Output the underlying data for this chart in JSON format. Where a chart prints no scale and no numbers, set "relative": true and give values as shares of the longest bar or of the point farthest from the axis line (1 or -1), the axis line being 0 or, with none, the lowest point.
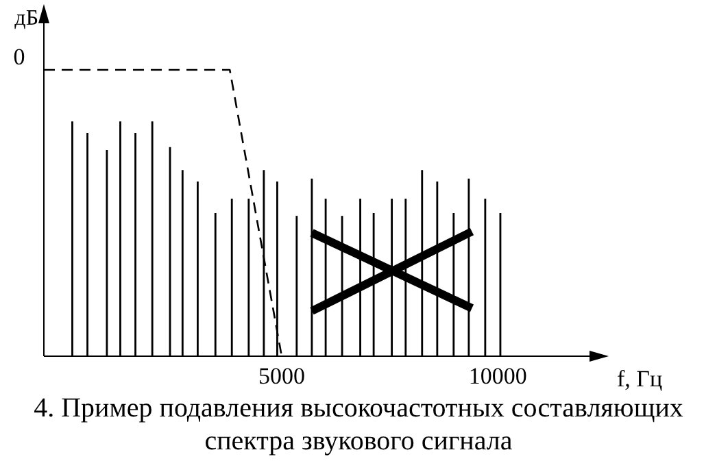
{
  "chart_data": {
    "type": "bar",
    "relative": true,
    "xlabel": "f, Гц",
    "ylabel": "дБ",
    "xlim": [
      -500,
      12500
    ],
    "xticks": [
      5000,
      10000
    ],
    "annotations": [
      "0",
      "4. Пример подавления высокочастотных составляющих спектра звукового сигнала"
    ],
    "series": [
      {
        "color": "#000000",
        "x": [
          160,
          510,
          960,
          1270,
          1620,
          2010,
          2420,
          2710,
          3060,
          3470,
          3850,
          4240,
          4590,
          4900,
          5350,
          5700,
          6020,
          6400,
          6820,
          7130,
          7550,
          7870,
          8250,
          8600,
          8980,
          9330,
          9710,
          10060
        ],
        "values": [
          0.82,
          0.78,
          0.72,
          0.82,
          0.78,
          0.82,
          0.73,
          0.65,
          0.61,
          0.5,
          0.55,
          0.55,
          0.65,
          0.61,
          0.49,
          0.62,
          0.55,
          0.49,
          0.55,
          0.5,
          0.55,
          0.55,
          0.65,
          0.61,
          0.5,
          0.62,
          0.55,
          0.5
        ]
      },
      {
        "type": "line",
        "color": "#000000",
        "line_style": "dashed",
        "marker": "none",
        "x": [
          -500,
          3800,
          5000
        ],
        "values": [
          1,
          1,
          0
        ]
      }
    ]
  }
}
